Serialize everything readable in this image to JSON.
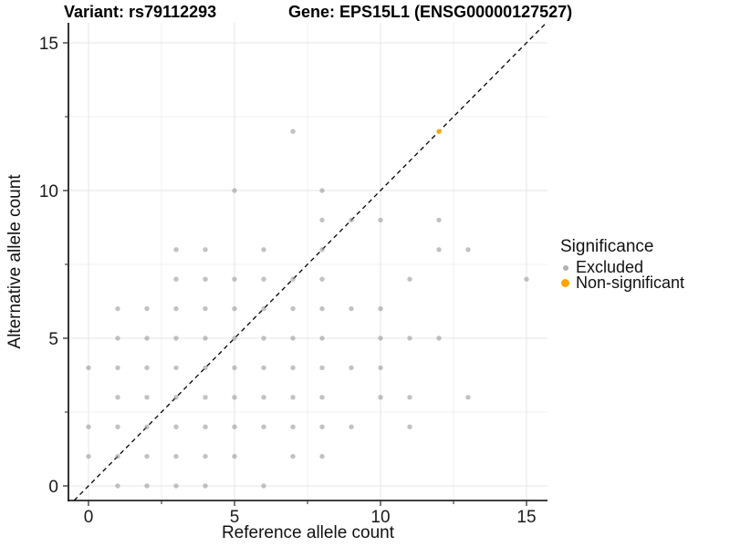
{
  "titles": {
    "variant": "Variant: rs79112293",
    "gene": "Gene: EPS15L1 (ENSG00000127527)"
  },
  "chart_data": {
    "type": "scatter",
    "title": "Variant: rs79112293  /  Gene: EPS15L1 (ENSG00000127527)",
    "xlabel": "Reference allele count",
    "ylabel": "Alternative allele count",
    "xlim": [
      0,
      15
    ],
    "ylim": [
      0,
      15
    ],
    "x_major_ticks": [
      0,
      5,
      10,
      15
    ],
    "x_minor_ticks": [
      2.5,
      7.5,
      12.5
    ],
    "y_major_ticks": [
      0,
      5,
      10,
      15
    ],
    "y_minor_ticks": [
      2.5,
      7.5,
      12.5
    ],
    "grid": "on",
    "reference_line": {
      "equation": "y = x",
      "style": "dashed",
      "color": "#000000"
    },
    "legend": {
      "title": "Significance",
      "position": "right"
    },
    "series": [
      {
        "name": "Excluded",
        "color": "#b0b0b0",
        "points": [
          [
            7,
            12
          ],
          [
            5,
            10
          ],
          [
            8,
            10
          ],
          [
            8,
            9
          ],
          [
            9,
            9
          ],
          [
            10,
            9
          ],
          [
            12,
            9
          ],
          [
            3,
            8
          ],
          [
            4,
            8
          ],
          [
            6,
            8
          ],
          [
            8,
            8
          ],
          [
            12,
            8
          ],
          [
            13,
            8
          ],
          [
            3,
            7
          ],
          [
            4,
            7
          ],
          [
            5,
            7
          ],
          [
            6,
            7
          ],
          [
            7,
            7
          ],
          [
            8,
            7
          ],
          [
            11,
            7
          ],
          [
            15,
            7
          ],
          [
            1,
            6
          ],
          [
            2,
            6
          ],
          [
            3,
            6
          ],
          [
            4,
            6
          ],
          [
            5,
            6
          ],
          [
            6,
            6
          ],
          [
            7,
            6
          ],
          [
            8,
            6
          ],
          [
            9,
            6
          ],
          [
            10,
            6
          ],
          [
            1,
            5
          ],
          [
            2,
            5
          ],
          [
            3,
            5
          ],
          [
            4,
            5
          ],
          [
            5,
            5
          ],
          [
            6,
            5
          ],
          [
            7,
            5
          ],
          [
            8,
            5
          ],
          [
            10,
            5
          ],
          [
            11,
            5
          ],
          [
            12,
            5
          ],
          [
            0,
            4
          ],
          [
            1,
            4
          ],
          [
            2,
            4
          ],
          [
            3,
            4
          ],
          [
            4,
            4
          ],
          [
            5,
            4
          ],
          [
            6,
            4
          ],
          [
            7,
            4
          ],
          [
            8,
            4
          ],
          [
            9,
            4
          ],
          [
            10,
            4
          ],
          [
            1,
            3
          ],
          [
            2,
            3
          ],
          [
            3,
            3
          ],
          [
            4,
            3
          ],
          [
            5,
            3
          ],
          [
            6,
            3
          ],
          [
            7,
            3
          ],
          [
            8,
            3
          ],
          [
            10,
            3
          ],
          [
            11,
            3
          ],
          [
            13,
            3
          ],
          [
            0,
            2
          ],
          [
            1,
            2
          ],
          [
            2,
            2
          ],
          [
            3,
            2
          ],
          [
            4,
            2
          ],
          [
            5,
            2
          ],
          [
            6,
            2
          ],
          [
            7,
            2
          ],
          [
            8,
            2
          ],
          [
            9,
            2
          ],
          [
            11,
            2
          ],
          [
            0,
            1
          ],
          [
            1,
            1
          ],
          [
            2,
            1
          ],
          [
            3,
            1
          ],
          [
            4,
            1
          ],
          [
            5,
            1
          ],
          [
            7,
            1
          ],
          [
            8,
            1
          ],
          [
            1,
            0
          ],
          [
            2,
            0
          ],
          [
            3,
            0
          ],
          [
            4,
            0
          ],
          [
            6,
            0
          ]
        ]
      },
      {
        "name": "Non-significant",
        "color": "#FFA500",
        "points": [
          [
            12,
            12
          ]
        ]
      }
    ]
  }
}
